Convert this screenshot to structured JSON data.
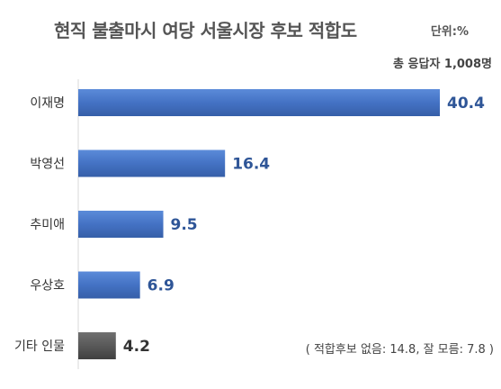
{
  "header": {
    "title": "현직 불출마시 여당 서울시장 후보 적합도",
    "unit": "단위:%",
    "respondents": "총 응답자 1,008명"
  },
  "footnote": "( 적합후보 없음: 14.8, 잘 모름: 7.8 )",
  "colors": {
    "primary_bar": "#4472C4",
    "other_bar": "#595959",
    "primary_value_text": "#2E5597",
    "other_value_text": "#333333"
  },
  "chart_data": {
    "type": "bar",
    "orientation": "horizontal",
    "categories": [
      "이재명",
      "박영선",
      "추미애",
      "우상호",
      "기타 인물"
    ],
    "values": [
      40.4,
      16.4,
      9.5,
      6.9,
      4.2
    ],
    "value_labels": [
      "40.4",
      "16.4",
      "9.5",
      "6.9",
      "4.2"
    ],
    "title": "현직 불출마시 여당 서울시장 후보 적합도",
    "xlabel": "",
    "ylabel": "",
    "xlim": [
      0,
      40.4
    ],
    "grid": false
  }
}
